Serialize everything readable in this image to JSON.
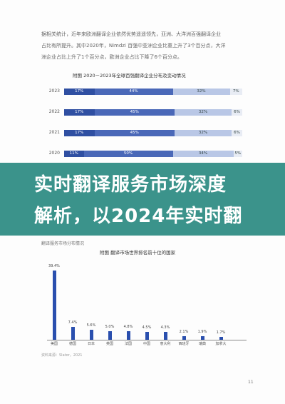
{
  "paragraph": {
    "line1": "据相关统计，近年来欧洲翻译企业依然优势遥遥领先，亚洲、大洋洲百强翻译企业",
    "line2": "占比有所提升。其中2020年，Nimdzi 百强中亚洲企业比重上升了3个百分点，大洋",
    "line3": "洲企业占比上升了1个百分点，欧洲企业占比下降了6个百分点。"
  },
  "figure1": {
    "title": "附图    2020－2023年全球百强翻译企业分布及变动情况"
  },
  "figure2": {
    "title": "附图    翻译市场世界排名前十位的国家"
  },
  "banner": {
    "line1": "实时翻译服务市场深度",
    "line2": "解析，以2024年实时翻"
  },
  "under_banner_text": "翻译服务市场分布情况",
  "source": "资料来源：Slator，2021",
  "page_number": "11",
  "colors": {
    "banner": "#0a786e",
    "bar_dark": "#2f4fa2",
    "bar_mid": "#4a68b8",
    "bar_light": "#b9c7e6"
  },
  "chart_data": [
    {
      "type": "bar",
      "orientation": "horizontal-stacked",
      "title": "2020－2023年全球百强翻译企业分布及变动情况",
      "categories": [
        "2023",
        "2022",
        "2021",
        "2020"
      ],
      "series": [
        {
          "values": [
            17,
            17,
            17,
            11
          ],
          "labels": [
            "17%",
            "17%",
            "17%",
            "11%"
          ]
        },
        {
          "values": [
            44,
            45,
            45,
            50
          ],
          "labels": [
            "44%",
            "45%",
            "45%",
            "50%"
          ]
        },
        {
          "values": [
            32,
            32,
            32,
            34
          ],
          "labels": [
            "32%",
            "32%",
            "32%",
            "34%"
          ]
        },
        {
          "values": [
            7,
            6,
            6,
            5
          ],
          "labels": [
            "7%",
            "6%",
            "6%",
            "5%"
          ]
        }
      ]
    },
    {
      "type": "bar",
      "title": "翻译市场世界排名前十位的国家",
      "categories": [
        "美国",
        "德国",
        "日本",
        "英国",
        "法国",
        "中国",
        "意大利",
        "西班牙",
        "瑞典",
        "加拿大"
      ],
      "values": [
        39.4,
        7.4,
        5.6,
        5.0,
        4.8,
        4.5,
        4.3,
        2.1,
        1.9,
        1.7
      ],
      "labels": [
        "39.4%",
        "7.4%",
        "5.6%",
        "5.0%",
        "4.8%",
        "4.5%",
        "4.3%",
        "2.1%",
        "1.9%",
        "1.7%"
      ],
      "ylim": [
        0,
        40
      ]
    }
  ]
}
